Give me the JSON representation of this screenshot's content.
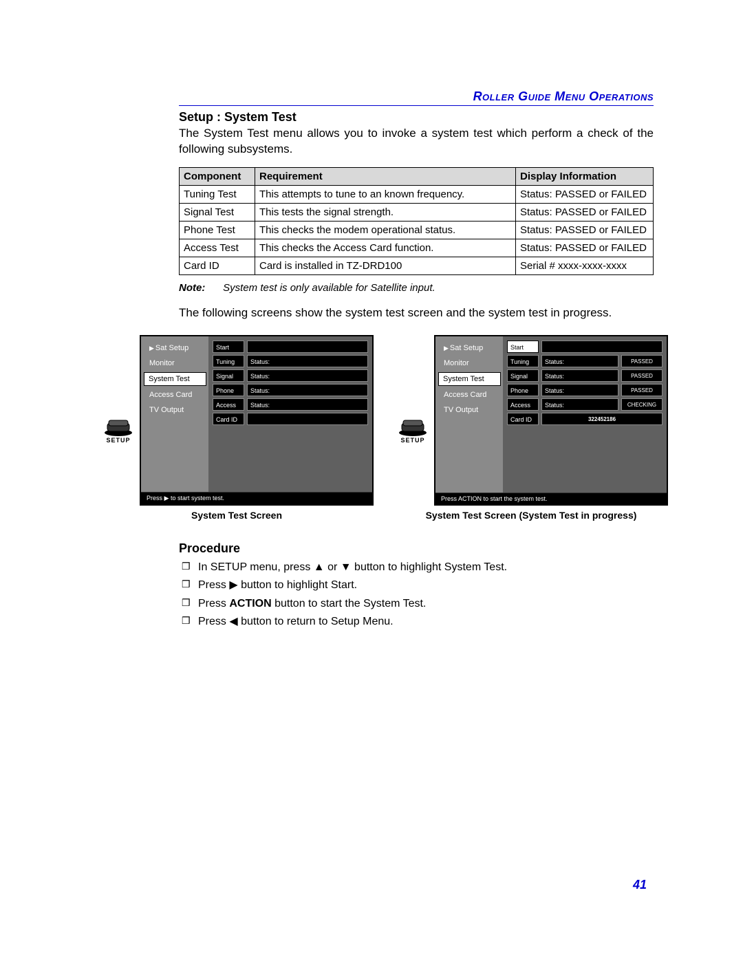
{
  "header": {
    "title": "Roller Guide Menu Operations"
  },
  "section_title": "Setup : System Test",
  "intro": "The System Test menu allows you to invoke a system test which perform a check of the following subsystems.",
  "table": {
    "columns": [
      "Component",
      "Requirement",
      "Display Information"
    ],
    "rows": [
      [
        "Tuning Test",
        "This attempts to tune to an known frequency.",
        "Status: PASSED or FAILED"
      ],
      [
        "Signal Test",
        "This tests the signal strength.",
        "Status: PASSED or FAILED"
      ],
      [
        "Phone Test",
        "This checks the modem operational status.",
        "Status: PASSED or FAILED"
      ],
      [
        "Access Test",
        "This checks the Access Card function.",
        "Status: PASSED or FAILED"
      ],
      [
        "Card ID",
        "Card is installed in TZ-DRD100",
        "Serial # xxxx-xxxx-xxxx"
      ]
    ]
  },
  "note": {
    "label": "Note:",
    "text": "System test is only available for Satellite input."
  },
  "followup": "The following screens show the system test screen and the system test in progress.",
  "setup_icon_label": "SETUP",
  "sidebar_items": [
    "Sat Setup",
    "Monitor",
    "System Test",
    "Access Card",
    "TV Output"
  ],
  "sidebar_selected_index": 2,
  "screen1": {
    "rows": [
      {
        "label": "Start",
        "start_selected": false,
        "value": ""
      },
      {
        "label": "Tuning",
        "status_label": "Status:",
        "value": ""
      },
      {
        "label": "Signal",
        "status_label": "Status:",
        "value": ""
      },
      {
        "label": "Phone",
        "status_label": "Status:",
        "value": ""
      },
      {
        "label": "Access",
        "status_label": "Status:",
        "value": ""
      },
      {
        "label": "Card ID",
        "value": ""
      }
    ],
    "hint_prefix": "Press ",
    "hint_glyph": "▶",
    "hint_suffix": " to start system test.",
    "caption": "System Test Screen"
  },
  "screen2": {
    "rows": [
      {
        "label": "Start",
        "start_selected": true,
        "value": ""
      },
      {
        "label": "Tuning",
        "status_label": "Status:",
        "value": "PASSED"
      },
      {
        "label": "Signal",
        "status_label": "Status:",
        "value": "PASSED"
      },
      {
        "label": "Phone",
        "status_label": "Status:",
        "value": "PASSED"
      },
      {
        "label": "Access",
        "status_label": "Status:",
        "value": "CHECKING"
      },
      {
        "label": "Card ID",
        "value": "322452186"
      }
    ],
    "hint": "Press ACTION to start the system test.",
    "caption": "System Test Screen (System Test in progress)"
  },
  "procedure": {
    "heading": "Procedure",
    "step1_a": "In SETUP menu, press ",
    "step1_b": " or ",
    "step1_c": " button to highlight System Test.",
    "step2_a": "Press ",
    "step2_b": " button to highlight Start.",
    "step3_a": "Press ",
    "step3_action": "ACTION",
    "step3_b": " button to start the System Test.",
    "step4_a": "Press ",
    "step4_b": " button to return to Setup Menu.",
    "glyph_up": "▲",
    "glyph_down": "▼",
    "glyph_right": "▶",
    "glyph_left": "◀"
  },
  "page_number": "41"
}
